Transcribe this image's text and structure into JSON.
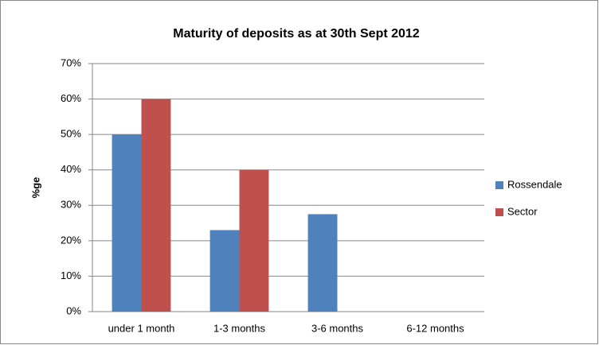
{
  "chart_data": {
    "type": "bar",
    "title": "Maturity of deposits as at 30th Sept 2012",
    "y_label": "%ge",
    "categories": [
      "under 1 month",
      "1-3 months",
      "3-6 months",
      "6-12 months"
    ],
    "series": [
      {
        "name": "Rossendale",
        "color": "#4f81bd",
        "values": [
          50,
          23,
          27.5,
          0
        ]
      },
      {
        "name": "Sector",
        "color": "#c0504d",
        "values": [
          60,
          40,
          0,
          0
        ]
      }
    ],
    "ylim": [
      0,
      70
    ],
    "yticks": [
      {
        "value": 0,
        "label": "0%"
      },
      {
        "value": 10,
        "label": "10%"
      },
      {
        "value": 20,
        "label": "20%"
      },
      {
        "value": 30,
        "label": "30%"
      },
      {
        "value": 40,
        "label": "40%"
      },
      {
        "value": 50,
        "label": "50%"
      },
      {
        "value": 60,
        "label": "60%"
      },
      {
        "value": 70,
        "label": "70%"
      }
    ],
    "grid": true,
    "legend": "right"
  }
}
